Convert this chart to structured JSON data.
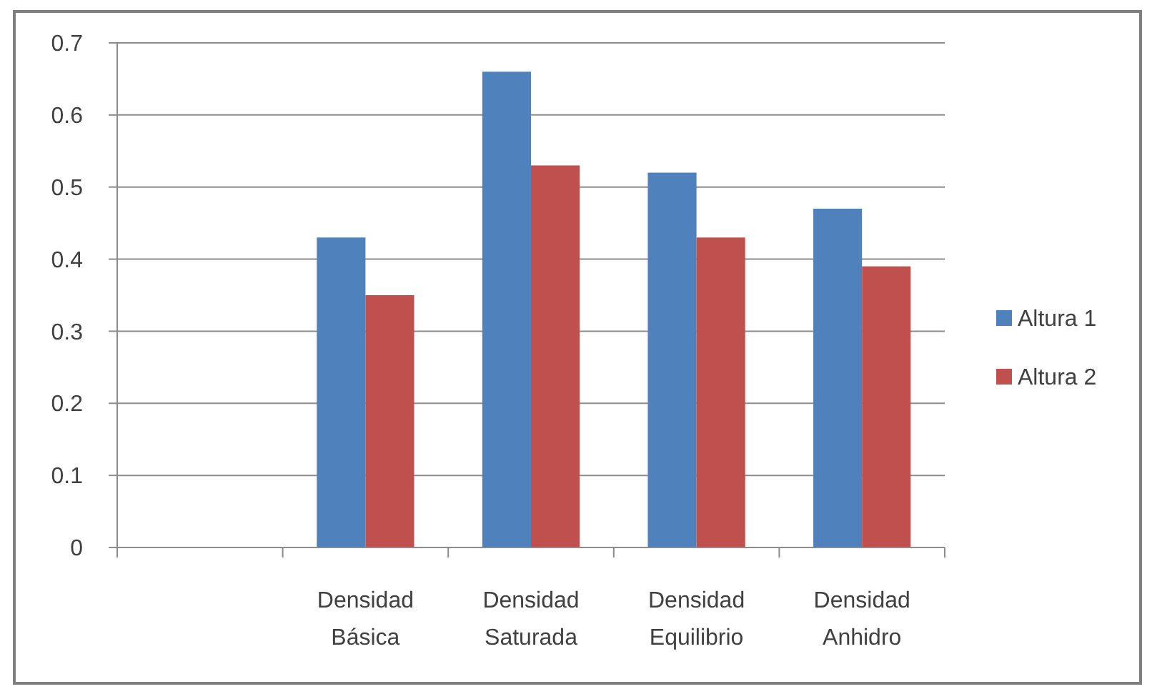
{
  "chart_data": {
    "type": "bar",
    "categories": [
      null,
      "Densidad Básica",
      "Densidad Saturada",
      "Densidad Equilibrio",
      "Densidad Anhidro"
    ],
    "series": [
      {
        "name": "Altura 1",
        "color": "#4f81bd",
        "values": [
          null,
          0.43,
          0.66,
          0.52,
          0.47
        ]
      },
      {
        "name": "Altura 2",
        "color": "#c0504d",
        "values": [
          null,
          0.35,
          0.53,
          0.43,
          0.39
        ]
      }
    ],
    "ylim": [
      0,
      0.7
    ],
    "yticks": [
      0,
      0.1,
      0.2,
      0.3,
      0.4,
      0.5,
      0.6,
      0.7
    ],
    "grid": "y",
    "legend": "right"
  }
}
